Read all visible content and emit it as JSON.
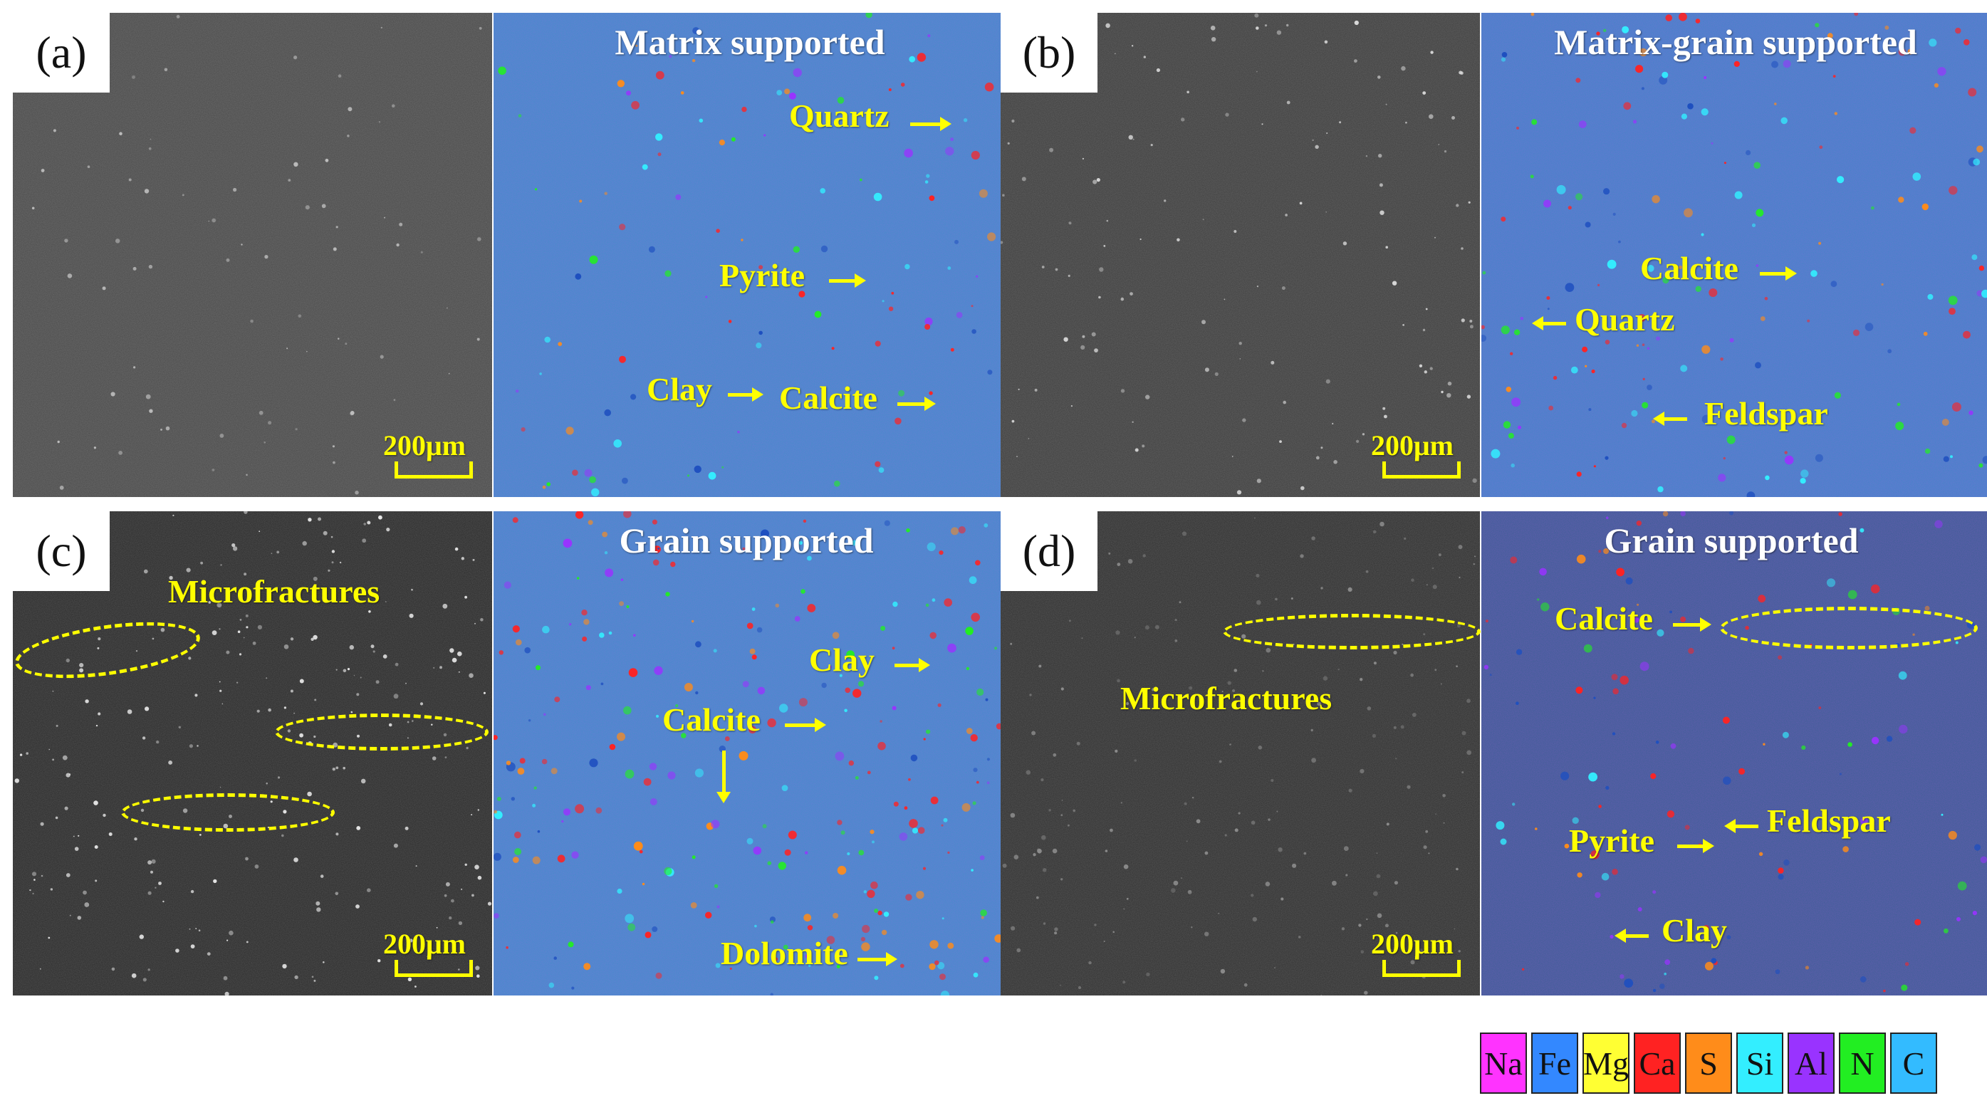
{
  "panels": [
    {
      "id": "a",
      "label": "(a)",
      "title": "Matrix supported",
      "scale": "200μm",
      "annotations": [
        {
          "text": "Quartz",
          "arrow": "right"
        },
        {
          "text": "Pyrite",
          "arrow": "right"
        },
        {
          "text": "Clay",
          "arrow": "right"
        },
        {
          "text": "Calcite",
          "arrow": "right"
        }
      ]
    },
    {
      "id": "b",
      "label": "(b)",
      "title": "Matrix-grain supported",
      "scale": "200μm",
      "annotations": [
        {
          "text": "Calcite",
          "arrow": "right"
        },
        {
          "text": "Quartz",
          "arrow": "left"
        },
        {
          "text": "Feldspar",
          "arrow": "left"
        }
      ]
    },
    {
      "id": "c",
      "label": "(c)",
      "title": "Grain supported",
      "scale": "200μm",
      "left_annotation": "Microfractures",
      "annotations": [
        {
          "text": "Clay",
          "arrow": "right"
        },
        {
          "text": "Calcite",
          "arrow": "right"
        },
        {
          "text": "Dolomite",
          "arrow": "right"
        }
      ]
    },
    {
      "id": "d",
      "label": "(d)",
      "title": "Grain supported",
      "scale": "200μm",
      "left_annotation": "Microfractures",
      "annotations": [
        {
          "text": "Calcite",
          "arrow": "right"
        },
        {
          "text": "Pyrite",
          "arrow": "right"
        },
        {
          "text": "Feldspar",
          "arrow": "left"
        },
        {
          "text": "Clay",
          "arrow": "left"
        }
      ]
    }
  ],
  "legend": [
    {
      "symbol": "Na",
      "color": "#ff33ff"
    },
    {
      "symbol": "Fe",
      "color": "#3388ff"
    },
    {
      "symbol": "Mg",
      "color": "#ffff33"
    },
    {
      "symbol": "Ca",
      "color": "#ff2222"
    },
    {
      "symbol": "S",
      "color": "#ff8c1a"
    },
    {
      "symbol": "Si",
      "color": "#33eeff"
    },
    {
      "symbol": "Al",
      "color": "#9933ff"
    },
    {
      "symbol": "N",
      "color": "#22ee22"
    },
    {
      "symbol": "C",
      "color": "#33bbff"
    }
  ],
  "colors": {
    "annotation": "#ffff00",
    "title": "#ffffff",
    "sem_a": "#4a4a4a",
    "sem_b": "#3e3e3e",
    "sem_c": "#2a2a2a",
    "sem_d": "#303030",
    "map_base": "#3b8fc7",
    "map_base_d": "#355f90"
  }
}
